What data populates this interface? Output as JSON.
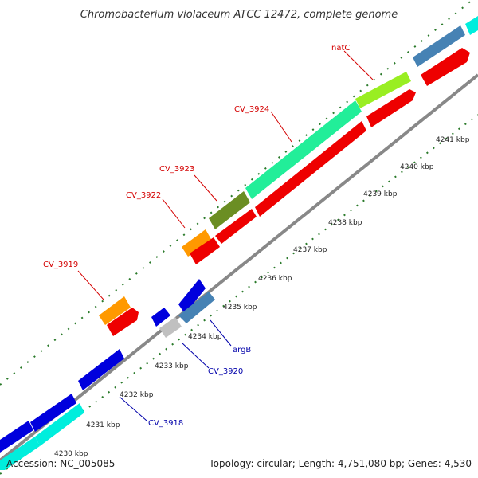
{
  "title": "Chromobacterium violaceum ATCC 12472, complete genome",
  "footer": {
    "accession": "Accession: NC_005085",
    "topology": "Topology: circular; Length: 4,751,080 bp; Genes: 4,530"
  },
  "kbp_ticks": [
    "4230 kbp",
    "4231 kbp",
    "4232 kbp",
    "4233 kbp",
    "4234 kbp",
    "4235 kbp",
    "4236 kbp",
    "4237 kbp",
    "4238 kbp",
    "4239 kbp",
    "4240 kbp",
    "4241 kbp"
  ],
  "gene_labels_forward": [
    "natC",
    "CV_3924",
    "CV_3923",
    "CV_3922",
    "CV_3919"
  ],
  "gene_labels_reverse": [
    "argB",
    "CV_3920",
    "CV_3918"
  ],
  "colors": {
    "forward_label": "#d40000",
    "reverse_label": "#0000aa",
    "backbone": "#888888",
    "tick": "#2a7a2a",
    "red": "#ee0000",
    "blue": "#0000dd",
    "cyan": "#00eedd",
    "steelblue": "#4682b4",
    "mint": "#22ee99",
    "olive": "#6b8e23",
    "lime": "#99ee22",
    "orange": "#ff9900",
    "gray": "#c0c0c0"
  }
}
